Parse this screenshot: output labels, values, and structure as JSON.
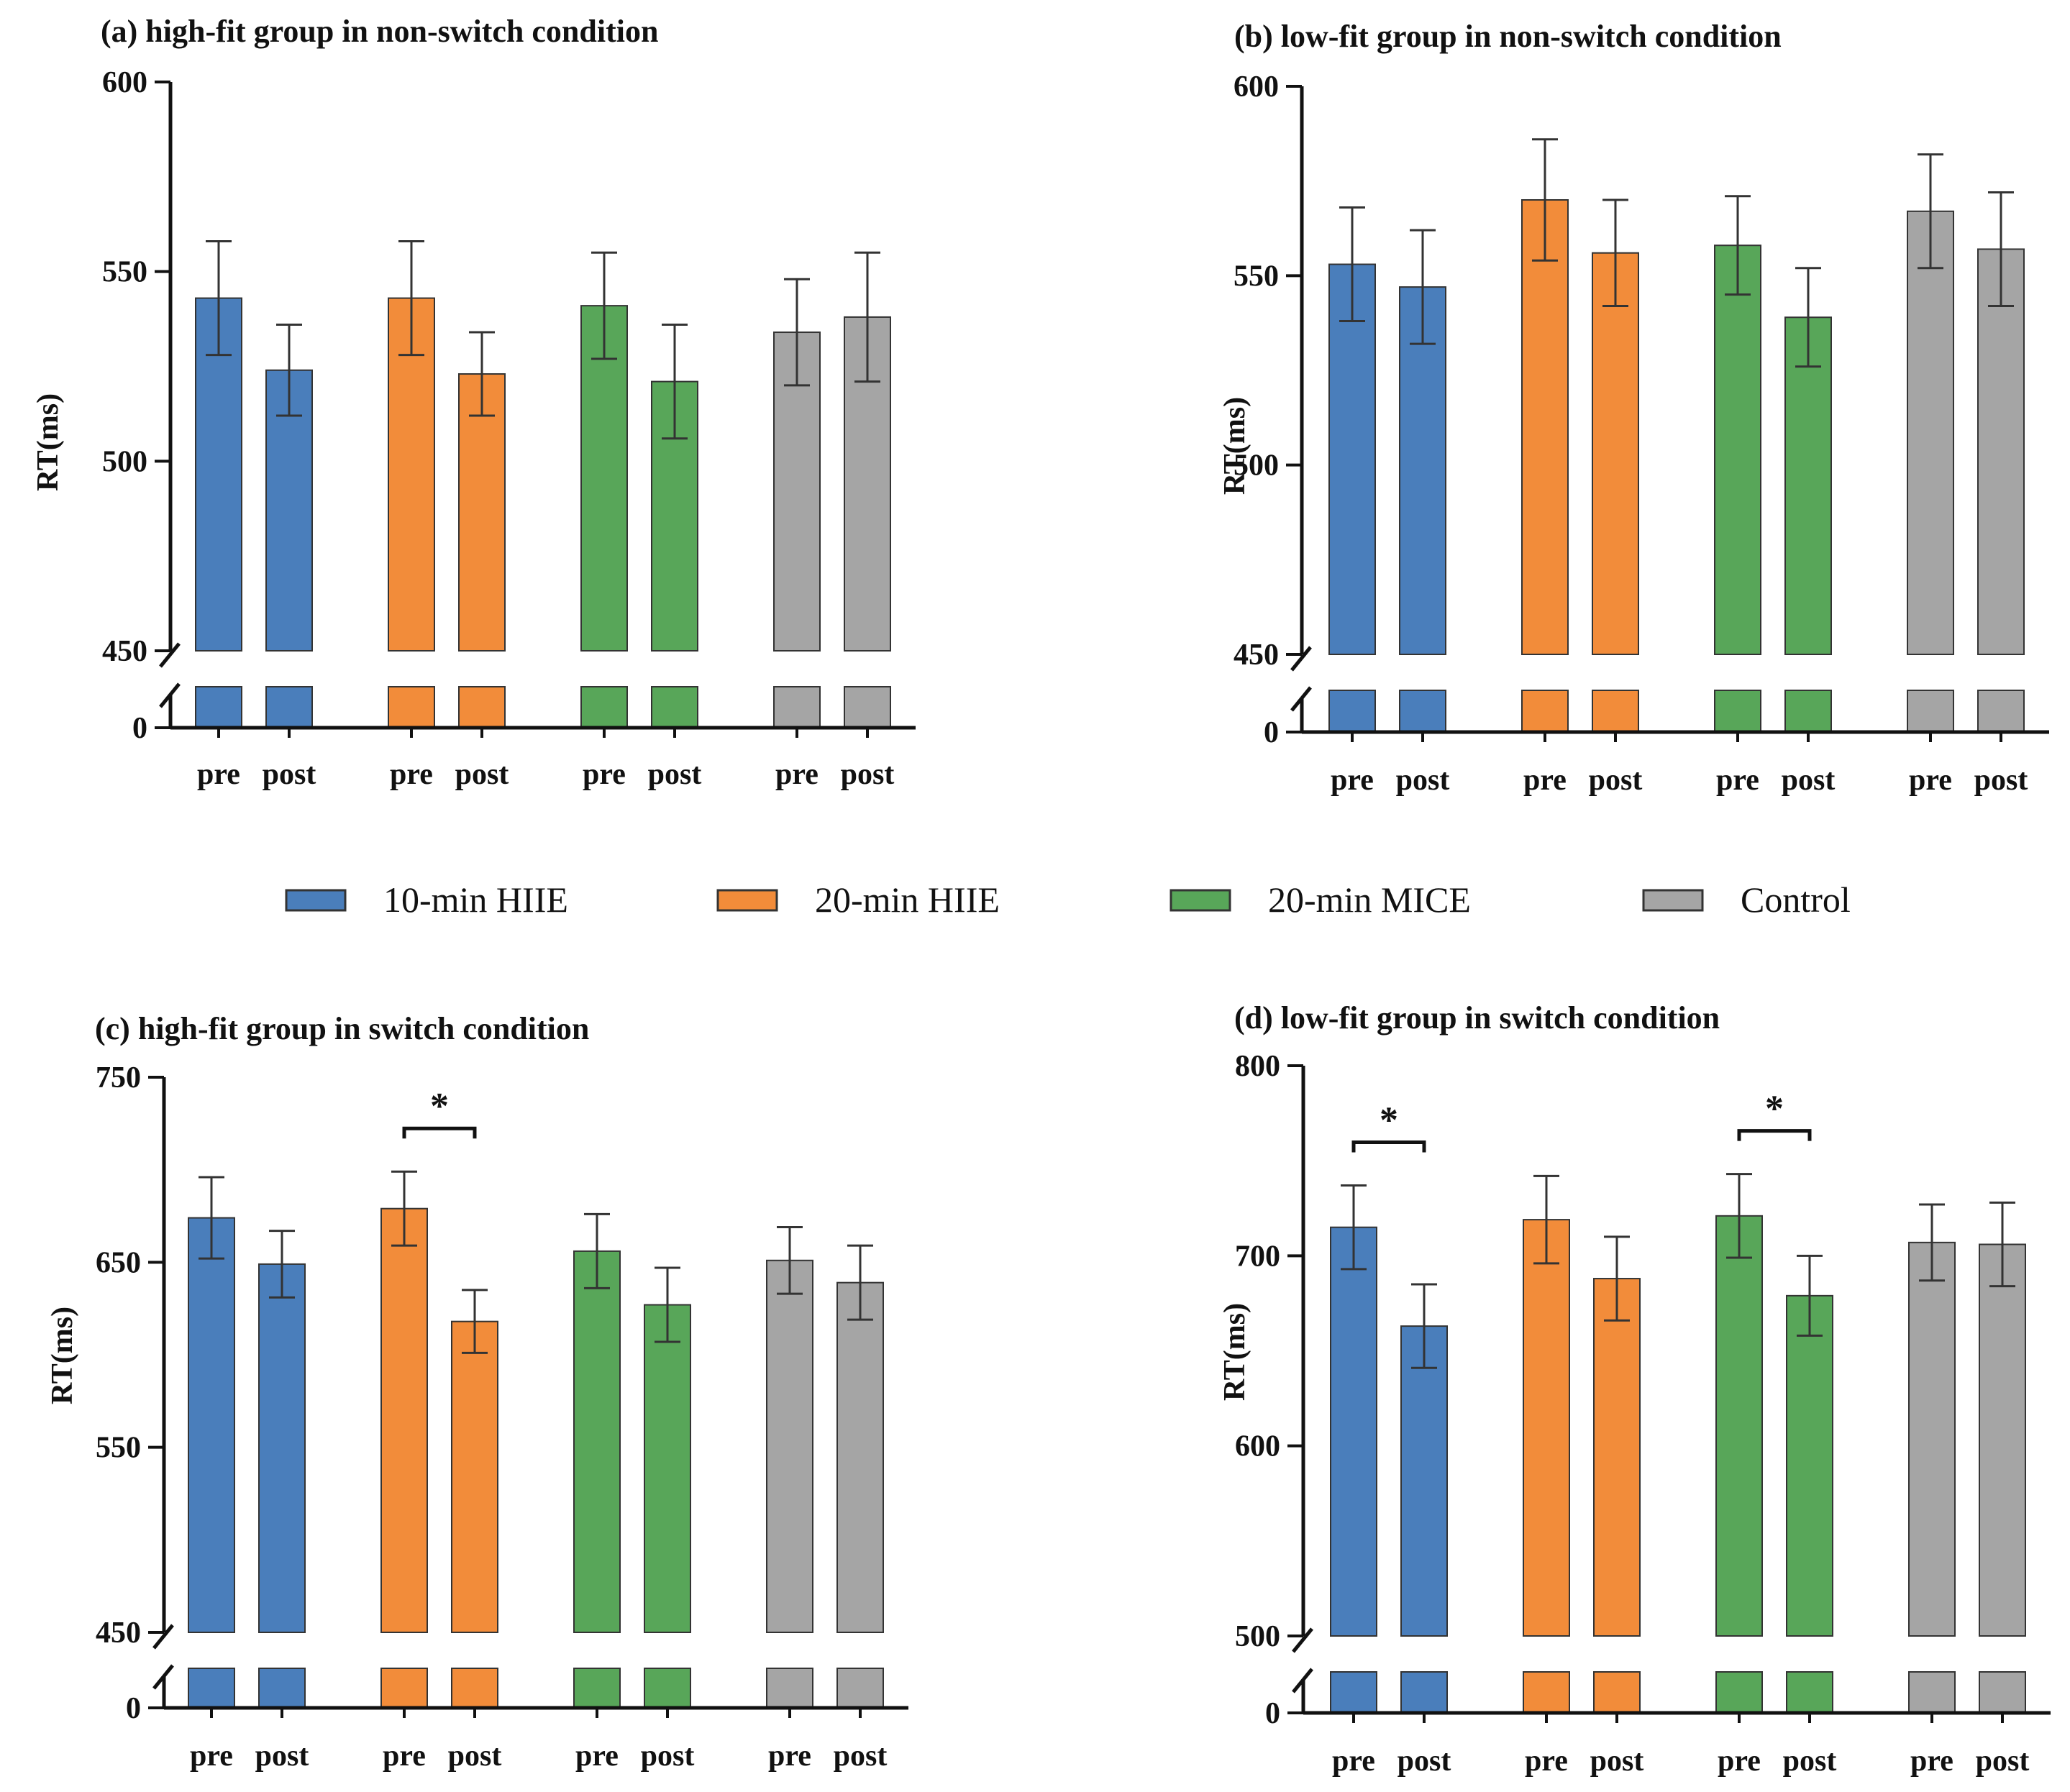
{
  "colors": {
    "10-min HIIE": "#4a7ebb",
    "20-min HIIE": "#f28c3a",
    "20-min MICE": "#58a659",
    "Control": "#a5a5a5",
    "axis": "#111111"
  },
  "legend": [
    {
      "label": "10-min HIIE",
      "color_key": "10-min HIIE"
    },
    {
      "label": "20-min HIIE",
      "color_key": "20-min HIIE"
    },
    {
      "label": "20-min MICE",
      "color_key": "20-min MICE"
    },
    {
      "label": "Control",
      "color_key": "Control"
    }
  ],
  "chart_data": [
    {
      "type": "bar",
      "title": "(a) high-fit group in non-switch condition",
      "ylabel": "RT(ms)",
      "ylim": [
        450,
        600
      ],
      "yticks": [
        "600",
        "550",
        "500",
        "450"
      ],
      "yticks_values": [
        600,
        550,
        500,
        450
      ],
      "broken_axis_zero": "0",
      "groups": [
        "10-min HIIE",
        "20-min HIIE",
        "20-min MICE",
        "Control"
      ],
      "categories": [
        "pre",
        "post"
      ],
      "values": [
        [
          543,
          524
        ],
        [
          543,
          523
        ],
        [
          541,
          521
        ],
        [
          534,
          538
        ]
      ],
      "errors": [
        [
          15,
          12
        ],
        [
          15,
          11
        ],
        [
          14,
          15
        ],
        [
          14,
          17
        ]
      ],
      "significance": []
    },
    {
      "type": "bar",
      "title": "(b) low-fit group in non-switch condition",
      "ylabel": "RT(ms)",
      "ylim": [
        450,
        600
      ],
      "yticks": [
        "600",
        "550",
        "500",
        "450"
      ],
      "yticks_values": [
        600,
        550,
        500,
        450
      ],
      "broken_axis_zero": "0",
      "groups": [
        "10-min HIIE",
        "20-min HIIE",
        "20-min MICE",
        "Control"
      ],
      "categories": [
        "pre",
        "post"
      ],
      "values": [
        [
          553,
          547
        ],
        [
          570,
          556
        ],
        [
          558,
          539
        ],
        [
          567,
          557
        ]
      ],
      "errors": [
        [
          15,
          15
        ],
        [
          16,
          14
        ],
        [
          13,
          13
        ],
        [
          15,
          15
        ]
      ],
      "significance": []
    },
    {
      "type": "bar",
      "title": "(c) high-fit group in switch condition",
      "ylabel": "RT(ms)",
      "ylim": [
        450,
        750
      ],
      "yticks": [
        "750",
        "650",
        "550",
        "450"
      ],
      "yticks_values": [
        750,
        650,
        550,
        450
      ],
      "broken_axis_zero": "0",
      "groups": [
        "10-min HIIE",
        "20-min HIIE",
        "20-min MICE",
        "Control"
      ],
      "categories": [
        "pre",
        "post"
      ],
      "values": [
        [
          674,
          649
        ],
        [
          679,
          618
        ],
        [
          656,
          627
        ],
        [
          651,
          639
        ]
      ],
      "errors": [
        [
          22,
          18
        ],
        [
          20,
          17
        ],
        [
          20,
          20
        ],
        [
          18,
          20
        ]
      ],
      "significance": [
        {
          "group_index": 1,
          "label": "*"
        }
      ]
    },
    {
      "type": "bar",
      "title": "(d) low-fit group in switch condition",
      "ylabel": "RT(ms)",
      "ylim": [
        500,
        800
      ],
      "yticks": [
        "800",
        "700",
        "600",
        "500"
      ],
      "yticks_values": [
        800,
        700,
        600,
        500
      ],
      "broken_axis_zero": "0",
      "groups": [
        "10-min HIIE",
        "20-min HIIE",
        "20-min MICE",
        "Control"
      ],
      "categories": [
        "pre",
        "post"
      ],
      "values": [
        [
          715,
          663
        ],
        [
          719,
          688
        ],
        [
          721,
          679
        ],
        [
          707,
          706
        ]
      ],
      "errors": [
        [
          22,
          22
        ],
        [
          23,
          22
        ],
        [
          22,
          21
        ],
        [
          20,
          22
        ]
      ],
      "significance": [
        {
          "group_index": 0,
          "label": "*"
        },
        {
          "group_index": 2,
          "label": "*"
        }
      ]
    }
  ]
}
